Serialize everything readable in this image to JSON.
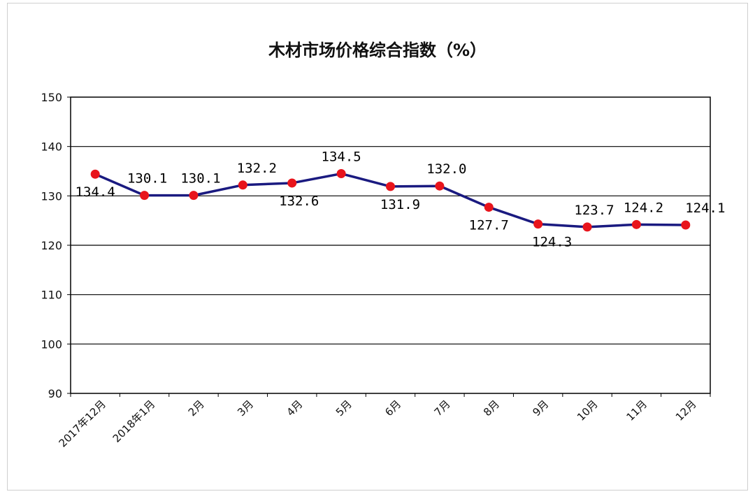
{
  "chart_data": {
    "type": "line",
    "title": "木材市场价格综合指数（%）",
    "xlabel": "",
    "ylabel": "",
    "ylim": [
      90,
      150
    ],
    "yticks": [
      90,
      100,
      110,
      120,
      130,
      140,
      150
    ],
    "grid": true,
    "legend": "none",
    "categories": [
      "2017年12月",
      "2018年1月",
      "2月",
      "3月",
      "4月",
      "5月",
      "6月",
      "7月",
      "8月",
      "9月",
      "10月",
      "11月",
      "12月"
    ],
    "series": [
      {
        "values": [
          134.4,
          130.1,
          130.1,
          132.2,
          132.6,
          134.5,
          131.9,
          132.0,
          127.7,
          124.3,
          123.7,
          124.2,
          124.1
        ],
        "data_labels": [
          "134.4",
          "130.1",
          "130.1",
          "132.2",
          "132.6",
          "134.5",
          "131.9",
          "132.0",
          "127.7",
          "124.3",
          "123.7",
          "124.2",
          "124.1"
        ],
        "line_color": "#1a1a80",
        "marker_color": "#e8141c"
      }
    ]
  }
}
